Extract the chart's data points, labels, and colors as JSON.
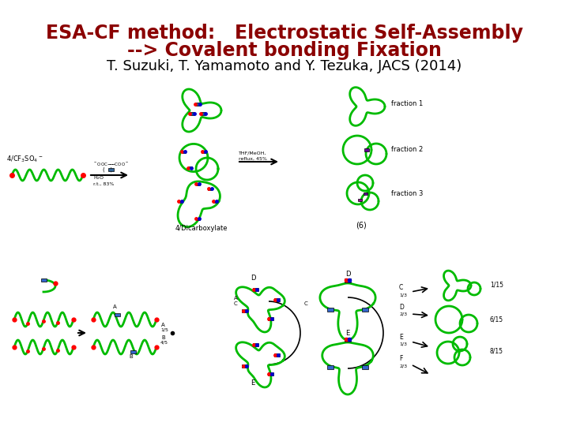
{
  "title_line1": "ESA-CF method:   Electrostatic Self-Assembly",
  "title_line2": "--> Covalent bonding Fixation",
  "subtitle": "T. Suzuki, T. Yamamoto and Y. Tezuka, JACS (2014)",
  "title_color": "#8B0000",
  "subtitle_color": "#000000",
  "title_fontsize": 17,
  "subtitle_fontsize": 13,
  "background_color": "#ffffff",
  "green": "#00BB00",
  "lw": 2.0
}
